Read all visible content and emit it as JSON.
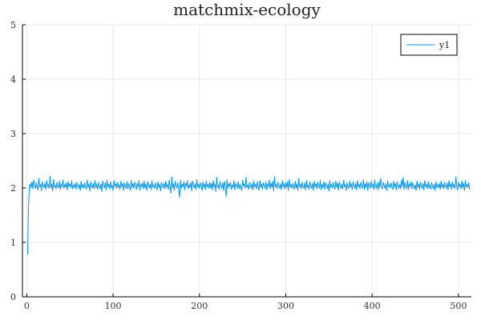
{
  "chart_data": {
    "type": "line",
    "title": "matchmix-ecology",
    "xlabel": "",
    "ylabel": "",
    "xlim": [
      -5,
      515
    ],
    "ylim": [
      0,
      5
    ],
    "xticks": [
      0,
      100,
      200,
      300,
      400,
      500
    ],
    "yticks": [
      0,
      1,
      2,
      3,
      4,
      5
    ],
    "grid": true,
    "legend": "top-right",
    "series": [
      {
        "name": "y1",
        "color": "#009af9",
        "x_start": 1,
        "x_step": 1,
        "values": [
          0.78,
          1.65,
          2.02,
          2.08,
          2.0,
          2.12,
          1.98,
          2.15,
          2.05,
          1.99,
          2.1,
          2.03,
          1.96,
          2.18,
          2.02,
          2.07,
          1.95,
          2.12,
          2.04,
          2.01,
          2.09,
          1.97,
          2.14,
          2.03,
          2.06,
          1.99,
          2.22,
          2.0,
          2.08,
          1.94,
          2.16,
          2.02,
          2.05,
          1.98,
          2.11,
          2.04,
          2.0,
          2.13,
          1.97,
          2.07,
          2.02,
          2.15,
          1.99,
          2.06,
          2.01,
          2.1,
          1.96,
          2.12,
          2.03,
          2.08,
          2.0,
          2.14,
          1.98,
          2.05,
          2.02,
          2.09,
          1.97,
          2.11,
          2.04,
          2.0,
          2.07,
          1.95,
          2.13,
          2.02,
          2.06,
          1.99,
          2.1,
          2.03,
          1.97,
          2.15,
          2.01,
          2.08,
          1.94,
          2.12,
          2.05,
          2.0,
          2.09,
          1.98,
          2.14,
          2.02,
          2.06,
          1.97,
          2.11,
          2.03,
          1.99,
          2.08,
          1.93,
          2.13,
          2.04,
          2.01,
          2.1,
          1.96,
          2.15,
          2.02,
          2.07,
          1.98,
          2.12,
          2.0,
          2.05,
          1.95,
          2.14,
          2.03,
          2.08,
          1.99,
          2.11,
          2.01,
          2.06,
          1.97,
          2.13,
          2.02,
          2.09,
          1.95,
          2.1,
          2.04,
          2.0,
          2.12,
          1.98,
          2.07,
          2.03,
          1.96,
          2.15,
          2.01,
          2.08,
          1.99,
          2.11,
          2.05,
          1.97,
          2.09,
          2.02,
          2.14,
          1.96,
          2.06,
          2.03,
          2.1,
          1.98,
          2.13,
          2.0,
          2.07,
          1.95,
          2.12,
          2.04,
          2.01,
          2.08,
          1.97,
          2.14,
          2.02,
          2.05,
          1.99,
          2.1,
          2.03,
          1.96,
          2.12,
          2.01,
          2.07,
          1.94,
          2.11,
          2.05,
          2.0,
          2.09,
          1.98,
          2.13,
          2.02,
          2.06,
          1.97,
          2.15,
          2.03,
          1.9,
          2.21,
          2.0,
          2.08,
          1.95,
          2.13,
          2.04,
          2.01,
          2.1,
          1.97,
          1.82,
          2.15,
          1.99,
          2.07,
          2.02,
          2.12,
          1.96,
          2.09,
          2.03,
          2.14,
          1.98,
          2.06,
          2.01,
          2.11,
          1.94,
          2.13,
          2.05,
          2.0,
          2.08,
          1.97,
          2.16,
          2.02,
          2.07,
          1.99,
          2.1,
          2.04,
          1.95,
          2.12,
          2.01,
          2.08,
          1.97,
          2.13,
          2.03,
          2.06,
          1.99,
          2.11,
          2.0,
          2.09,
          1.96,
          2.14,
          2.02,
          2.07,
          1.93,
          2.2,
          2.01,
          2.05,
          1.97,
          2.12,
          2.04,
          2.0,
          2.1,
          1.95,
          2.13,
          2.02,
          1.84,
          2.16,
          1.99,
          2.08,
          2.03,
          2.11,
          1.97,
          2.06,
          2.01,
          2.14,
          1.96,
          2.09,
          2.04,
          2.0,
          2.12,
          1.98,
          2.07,
          2.02,
          1.95,
          2.15,
          2.03,
          2.08,
          1.99,
          2.2,
          2.01,
          2.06,
          1.97,
          2.11,
          2.04,
          2.0,
          2.09,
          1.96,
          2.13,
          2.02,
          2.07,
          1.98,
          2.12,
          2.03,
          1.95,
          2.14,
          2.01,
          2.08,
          1.97,
          2.1,
          2.04,
          2.0,
          2.12,
          1.96,
          2.07,
          2.03,
          2.15,
          1.98,
          2.09,
          2.01,
          2.13,
          1.94,
          2.21,
          2.02,
          2.06,
          1.99,
          2.11,
          2.04,
          2.0,
          2.08,
          1.96,
          2.14,
          2.03,
          2.07,
          1.98,
          2.1,
          2.01,
          2.12,
          1.95,
          2.16,
          2.02,
          2.06,
          1.99,
          2.09,
          2.04,
          1.97,
          2.13,
          2.0,
          2.08,
          1.95,
          2.18,
          2.02,
          2.07,
          1.98,
          2.11,
          2.03,
          2.0,
          2.1,
          1.96,
          2.14,
          2.01,
          2.06,
          1.97,
          2.12,
          2.04,
          1.99,
          2.09,
          1.95,
          2.13,
          2.02,
          2.08,
          1.98,
          2.11,
          2.03,
          2.0,
          2.15,
          1.96,
          2.07,
          2.01,
          2.12,
          1.97,
          2.1,
          2.04,
          1.99,
          2.08,
          1.94,
          2.14,
          2.02,
          2.06,
          2.0,
          2.11,
          2.03,
          1.97,
          2.13,
          2.01,
          2.09,
          1.96,
          2.12,
          2.04,
          2.0,
          2.07,
          1.98,
          2.15,
          2.02,
          2.06,
          1.95,
          2.1,
          2.03,
          1.99,
          2.13,
          2.01,
          2.08,
          1.97,
          2.12,
          2.04,
          2.0,
          2.09,
          1.96,
          2.14,
          2.02,
          2.07,
          1.98,
          2.11,
          2.03,
          2.0,
          2.16,
          1.97,
          2.08,
          2.01,
          2.12,
          1.95,
          2.1,
          2.04,
          1.99,
          2.13,
          2.02,
          2.07,
          1.97,
          2.15,
          2.03,
          2.0,
          2.09,
          1.96,
          2.12,
          2.01,
          2.18,
          2.02,
          1.98,
          2.11,
          2.04,
          1.99,
          2.08,
          1.95,
          2.14,
          2.03,
          2.06,
          2.0,
          2.1,
          2.02,
          1.97,
          2.13,
          2.01,
          2.09,
          1.96,
          2.12,
          2.04,
          1.99,
          2.07,
          1.98,
          2.15,
          2.02,
          2.2,
          1.97,
          2.11,
          2.03,
          2.0,
          2.14,
          1.96,
          2.08,
          2.02,
          2.12,
          1.98,
          2.1,
          2.04,
          1.99,
          2.06,
          1.95,
          2.13,
          2.01,
          2.08,
          1.97,
          2.11,
          2.03,
          2.0,
          2.09,
          1.96,
          2.14,
          2.02,
          2.07,
          1.98,
          2.12,
          2.01,
          2.05,
          1.97,
          2.1,
          2.03,
          1.99,
          2.08,
          1.95,
          2.12,
          2.02,
          2.06,
          2.0,
          2.09,
          1.97,
          2.13,
          2.01,
          2.07,
          1.98,
          2.11,
          2.03,
          2.0,
          2.1,
          1.96,
          2.14,
          2.02,
          2.08,
          1.97,
          2.12,
          2.01,
          2.06,
          1.99,
          2.21,
          2.03,
          1.96,
          2.11,
          2.02,
          2.07,
          1.98,
          2.13,
          2.0,
          2.09,
          1.95,
          2.14,
          2.02,
          2.06,
          2.01,
          2.1,
          1.97
        ]
      }
    ]
  }
}
